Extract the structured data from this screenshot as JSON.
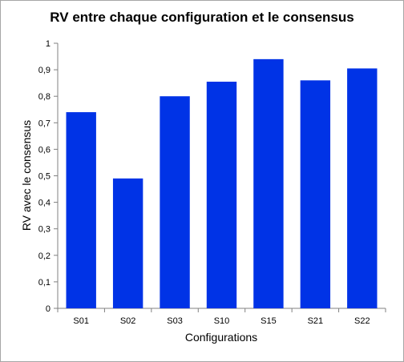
{
  "chart_data": {
    "type": "bar",
    "title": "RV entre chaque configuration et le consensus",
    "xlabel": "Configurations",
    "ylabel": "RV avec le consensus",
    "categories": [
      "S01",
      "S02",
      "S03",
      "S10",
      "S15",
      "S21",
      "S22"
    ],
    "values": [
      0.74,
      0.49,
      0.8,
      0.855,
      0.94,
      0.86,
      0.905
    ],
    "ylim": [
      0,
      1
    ],
    "yticks": [
      "0",
      "0,1",
      "0,2",
      "0,3",
      "0,4",
      "0,5",
      "0,6",
      "0,7",
      "0,8",
      "0,9",
      "1"
    ],
    "grid": false,
    "legend": "none",
    "bar_color": "#0033e6"
  }
}
